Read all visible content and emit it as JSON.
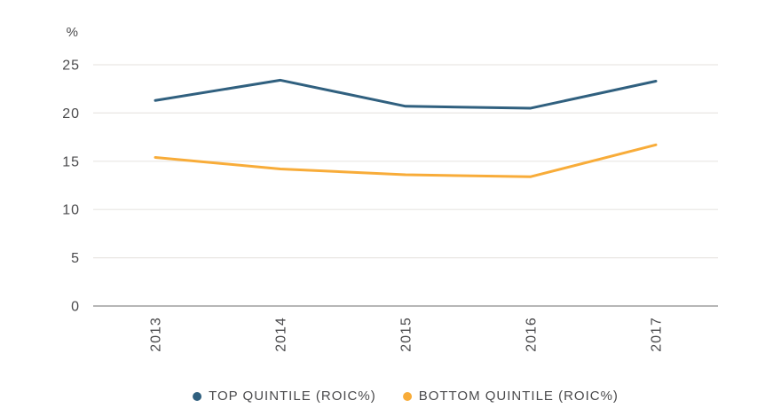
{
  "chart": {
    "unit_label": "%",
    "legend": [
      {
        "label": "TOP QUINTILE (ROIC%)",
        "color": "#30607f"
      },
      {
        "label": "BOTTOM QUINTILE (ROIC%)",
        "color": "#f8ac39"
      }
    ]
  },
  "chart_data": {
    "type": "line",
    "categories": [
      "2013",
      "2014",
      "2015",
      "2016",
      "2017"
    ],
    "series": [
      {
        "name": "TOP QUINTILE (ROIC%)",
        "color": "#30607f",
        "values": [
          21.3,
          23.4,
          20.7,
          20.5,
          23.3
        ]
      },
      {
        "name": "BOTTOM QUINTILE (ROIC%)",
        "color": "#f8ac39",
        "values": [
          15.4,
          14.2,
          13.6,
          13.4,
          16.7
        ]
      }
    ],
    "title": "",
    "xlabel": "",
    "ylabel": "%",
    "ylim": [
      0,
      25
    ],
    "yticks": [
      0,
      5,
      10,
      15,
      20,
      25
    ],
    "grid": true,
    "gridline_color": "#e9e6e3",
    "zero_line_color": "#9d9d9d",
    "legend_position": "bottom"
  }
}
